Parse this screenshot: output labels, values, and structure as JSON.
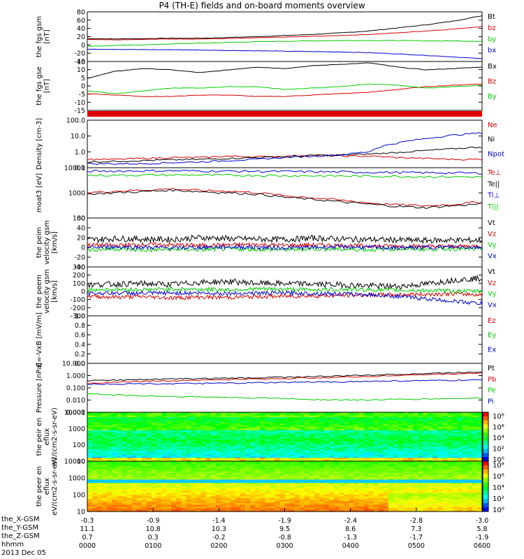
{
  "chart_data": [
    {
      "type": "line",
      "ylabel": "the fgs gsm [nT]",
      "ylim": [
        -40,
        90
      ],
      "ticks": [
        80,
        60,
        40,
        20,
        0,
        -20,
        -40
      ],
      "series": [
        {
          "name": "Bt",
          "color": "#000000",
          "values": [
            20,
            19,
            20,
            21,
            21,
            23,
            25,
            28,
            31,
            35,
            40,
            48,
            56,
            66,
            80
          ]
        },
        {
          "name": "bz",
          "color": "#d40000",
          "values": [
            18,
            17,
            18,
            19,
            19,
            20,
            22,
            24,
            26,
            28,
            31,
            35,
            40,
            45,
            52
          ]
        },
        {
          "name": "by",
          "color": "#00cc00",
          "values": [
            0,
            2,
            4,
            6,
            8,
            10,
            12,
            13,
            14,
            15,
            15,
            15,
            14,
            14,
            13
          ]
        },
        {
          "name": "bx",
          "color": "#0000cc",
          "values": [
            -8,
            -8,
            -9,
            -9,
            -10,
            -11,
            -12,
            -13,
            -14,
            -15,
            -17,
            -20,
            -24,
            -28,
            -33
          ]
        }
      ]
    },
    {
      "type": "line",
      "ylabel": "the fgs gse [nT]",
      "ylim": [
        -20,
        15
      ],
      "ticks": [
        15,
        10,
        5,
        0,
        -5,
        -10,
        -15
      ],
      "series": [
        {
          "name": "Bx",
          "color": "#000000",
          "values": [
            3,
            8,
            10,
            9,
            7,
            9,
            11,
            10,
            12,
            13,
            14,
            11,
            9,
            10,
            11
          ]
        },
        {
          "name": "Bz",
          "color": "#d40000",
          "values": [
            -8,
            -9,
            -10,
            -10,
            -9,
            -9,
            -10,
            -10,
            -9,
            -8,
            -7,
            -5,
            -3,
            -2,
            -1
          ]
        },
        {
          "name": "By",
          "color": "#00cc00",
          "values": [
            -6,
            -8,
            -6,
            -4,
            -4,
            -3,
            -3,
            -5,
            -4,
            -3,
            -1,
            -2,
            -4,
            -3,
            -2
          ]
        }
      ]
    },
    {
      "type": "line",
      "ylabel": "Density [cm-3]",
      "log": true,
      "ylim": [
        0.08,
        150
      ],
      "ticks": [
        "100.0",
        "10.0",
        "1.0",
        "0.1"
      ],
      "series": [
        {
          "name": "Ne",
          "color": "#d40000",
          "values": [
            0.3,
            0.3,
            0.35,
            0.4,
            0.4,
            0.5,
            0.45,
            0.5,
            0.6,
            0.5,
            0.5,
            0.4,
            0.35,
            0.3,
            0.3
          ]
        },
        {
          "name": "Ni",
          "color": "#000000",
          "values": [
            0.2,
            0.22,
            0.25,
            0.28,
            0.3,
            0.35,
            0.4,
            0.45,
            0.55,
            0.6,
            0.7,
            0.9,
            1.2,
            1.6,
            2.2
          ]
        },
        {
          "name": "Npot",
          "color": "#0000cc",
          "values": [
            0.15,
            0.15,
            0.15,
            0.18,
            0.2,
            0.25,
            0.3,
            0.4,
            0.5,
            0.6,
            1.0,
            4,
            8,
            14,
            20
          ]
        }
      ]
    },
    {
      "type": "line",
      "ylabel": "moat3 [eV]",
      "log": true,
      "ylim": [
        40,
        12000
      ],
      "ticks": [
        "10000",
        "1000",
        "100"
      ],
      "series": [
        {
          "name": "Te⊥",
          "color": "#d40000",
          "values": [
            700,
            850,
            950,
            1100,
            900,
            850,
            700,
            500,
            400,
            300,
            220,
            180,
            160,
            190,
            250
          ]
        },
        {
          "name": "Te||",
          "color": "#000000",
          "values": [
            600,
            700,
            800,
            950,
            800,
            700,
            600,
            420,
            330,
            250,
            190,
            150,
            130,
            160,
            200
          ]
        },
        {
          "name": "Ti⊥",
          "color": "#0000cc",
          "values": [
            8000,
            8200,
            8400,
            8500,
            8300,
            8100,
            8000,
            7800,
            7600,
            7400,
            7200,
            7000,
            6800,
            6700,
            6500
          ]
        },
        {
          "name": "Ti||",
          "color": "#00cc00",
          "values": [
            5000,
            5100,
            5200,
            5300,
            5200,
            5100,
            5000,
            4900,
            4800,
            4700,
            4600,
            4500,
            4400,
            4300,
            4200
          ]
        }
      ]
    },
    {
      "type": "line",
      "ylabel": "the peim velocity gsm [km/s]",
      "ylim": [
        -40,
        60
      ],
      "ticks": [
        60,
        40,
        20,
        0,
        -20,
        -40
      ],
      "series": [
        {
          "name": "Vt",
          "color": "#000000",
          "values": [
            15,
            18,
            17,
            16,
            20,
            18,
            17,
            16,
            19,
            17,
            16,
            15,
            14,
            15,
            14
          ]
        },
        {
          "name": "Vz",
          "color": "#d40000",
          "values": [
            5,
            4,
            6,
            5,
            4,
            5,
            6,
            4,
            5,
            4,
            3,
            3,
            2,
            2,
            3
          ]
        },
        {
          "name": "Vy",
          "color": "#00cc00",
          "values": [
            -5,
            -3,
            -6,
            -4,
            -5,
            -3,
            -4,
            -5,
            -3,
            -4,
            -5,
            -3,
            -4,
            -3,
            -4
          ]
        },
        {
          "name": "Vx",
          "color": "#0000cc",
          "values": [
            0,
            1,
            0,
            -1,
            0,
            1,
            0,
            -1,
            0,
            1,
            0,
            -1,
            0,
            1,
            0
          ]
        }
      ]
    },
    {
      "type": "line",
      "ylabel": "the peem velocity gsm [km/s]",
      "ylim": [
        -300,
        300
      ],
      "ticks": [
        300,
        200,
        100,
        0,
        -100,
        -200,
        -300
      ],
      "series": [
        {
          "name": "Vt",
          "color": "#000000",
          "values": [
            80,
            90,
            95,
            85,
            110,
            120,
            100,
            95,
            90,
            80,
            70,
            60,
            90,
            140,
            160
          ]
        },
        {
          "name": "Vz",
          "color": "#d40000",
          "values": [
            -60,
            -70,
            -65,
            -80,
            -70,
            -75,
            -65,
            -60,
            -55,
            -50,
            -45,
            -40,
            -35,
            -30,
            -40
          ]
        },
        {
          "name": "Vy",
          "color": "#00cc00",
          "values": [
            20,
            25,
            20,
            30,
            25,
            20,
            30,
            25,
            20,
            25,
            20,
            15,
            10,
            5,
            0
          ]
        },
        {
          "name": "Vx",
          "color": "#0000cc",
          "values": [
            -20,
            -20,
            -25,
            -20,
            -20,
            -25,
            -20,
            -20,
            -25,
            -30,
            -40,
            -60,
            -90,
            -120,
            -150
          ]
        }
      ]
    },
    {
      "type": "line",
      "ylabel": "E=-VxB [mV/m]",
      "ylim": [
        0,
        1
      ],
      "ticks": [
        "1.0",
        "0.8",
        "0.6",
        "0.4",
        "0.2",
        "0.0"
      ],
      "series": [
        {
          "name": "Ez",
          "color": "#d40000",
          "values": []
        },
        {
          "name": "Ey",
          "color": "#00cc00",
          "values": []
        },
        {
          "name": "Ex",
          "color": "#0000cc",
          "values": []
        }
      ]
    },
    {
      "type": "line",
      "ylabel": "Pressure [nPa]",
      "log": true,
      "ylim": [
        0.0008,
        12
      ],
      "ticks": [
        "10.000",
        "1.000",
        "0.100",
        "0.010",
        "0.001"
      ],
      "series": [
        {
          "name": "Pt",
          "color": "#000000",
          "values": [
            0.4,
            0.45,
            0.5,
            0.55,
            0.6,
            0.65,
            0.7,
            0.8,
            0.9,
            1.0,
            1.2,
            1.4,
            1.6,
            1.9,
            2.3
          ]
        },
        {
          "name": "Pb",
          "color": "#d40000",
          "values": [
            0.25,
            0.3,
            0.35,
            0.4,
            0.45,
            0.5,
            0.55,
            0.6,
            0.7,
            0.8,
            0.9,
            1.1,
            1.3,
            1.5,
            1.8
          ]
        },
        {
          "name": "Pe",
          "color": "#00cc00",
          "values": [
            0.03,
            0.025,
            0.02,
            0.018,
            0.016,
            0.015,
            0.013,
            0.012,
            0.01,
            0.009,
            0.009,
            0.01,
            0.011,
            0.012,
            0.013
          ]
        },
        {
          "name": "Pi",
          "color": "#0000cc",
          "values": [
            0.2,
            0.21,
            0.22,
            0.22,
            0.23,
            0.24,
            0.26,
            0.28,
            0.3,
            0.32,
            0.35,
            0.38,
            0.4,
            0.42,
            0.45
          ]
        }
      ]
    },
    {
      "type": "heatmap",
      "ylabel": "the peir en eflux eV/(cm2-s-sr-eV)",
      "ticks": [
        "10000",
        "1000",
        "100",
        "10"
      ],
      "colorbar": [
        "10⁸",
        "10⁶",
        "10⁴",
        "10²",
        "10⁰"
      ]
    },
    {
      "type": "heatmap",
      "ylabel": "the peer en eflux eV/(cm2-s-sr-eV)",
      "ticks": [
        "10000",
        "1000",
        "100",
        "10"
      ],
      "colorbar": [
        "10⁸",
        "10⁶",
        "10⁴",
        "10²",
        "10⁰"
      ]
    }
  ],
  "labels": {
    "title": "P4 (TH-E) fields and on-board moments overview",
    "x_gsm": "the_X-GSM",
    "y_gsm": "the_Y-GSM",
    "z_gsm": "the_Z-GSM",
    "hhmm": "hhmm",
    "date": "2013 Dec 05"
  },
  "x_axis": {
    "x_gsm": [
      "-0.3",
      "-0.9",
      "-1.4",
      "-1.9",
      "-2.4",
      "-2.8",
      "-3.0"
    ],
    "y_gsm": [
      "11.1",
      "10.8",
      "10.3",
      "9.5",
      "8.6",
      "7.3",
      "5.8"
    ],
    "z_gsm": [
      "0.7",
      "0.3",
      "-0.2",
      "-0.8",
      "-1.3",
      "-1.7",
      "-1.9"
    ],
    "hhmm": [
      "0000",
      "0100",
      "0200",
      "0300",
      "0400",
      "0500",
      "0600"
    ]
  }
}
